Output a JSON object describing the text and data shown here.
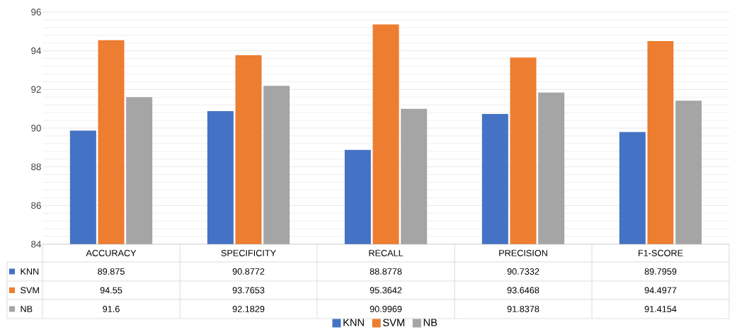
{
  "chart_data": {
    "type": "bar",
    "categories": [
      "ACCURACY",
      "SPECIFICITY",
      "RECALL",
      "PRECISION",
      "F1-SCORE"
    ],
    "series": [
      {
        "name": "KNN",
        "color": "#4472c4",
        "values": [
          89.875,
          90.8772,
          88.8778,
          90.7332,
          89.7959
        ]
      },
      {
        "name": "SVM",
        "color": "#ed7d31",
        "values": [
          94.55,
          93.7653,
          95.3642,
          93.6468,
          94.4977
        ]
      },
      {
        "name": "NB",
        "color": "#a5a5a5",
        "values": [
          91.6,
          92.1829,
          90.9969,
          91.8378,
          91.4154
        ]
      }
    ],
    "ylim": [
      84,
      96
    ],
    "yticks": [
      84,
      86,
      88,
      90,
      92,
      94,
      96
    ],
    "grid": "y",
    "legend": "bottom",
    "data_labels": true
  }
}
